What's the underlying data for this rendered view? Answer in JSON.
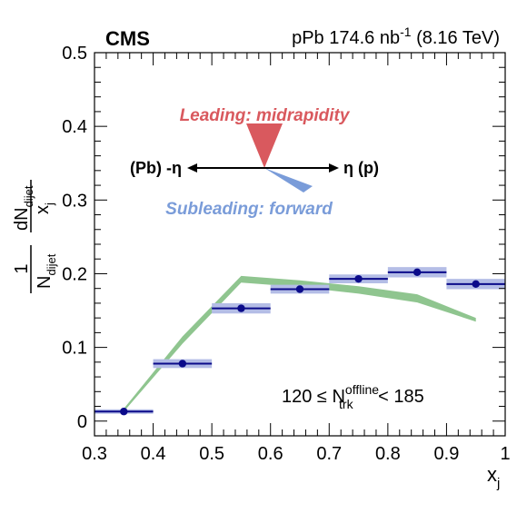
{
  "header": {
    "experiment": "CMS",
    "lumi_prefix": "pPb 174.6 nb",
    "lumi_exp": "-1",
    "lumi_suffix": " (8.16 TeV)"
  },
  "inset": {
    "leading_label": "Leading: midrapidity",
    "subleading_label": "Subleading: forward",
    "left_label": "(Pb) -η",
    "right_label": "η (p)",
    "leading_color": "#d9595e",
    "subleading_color": "#7a9cd9"
  },
  "selection": {
    "prefix": "120 ≤ N",
    "sup": "offline",
    "sub": "trk",
    "suffix": " < 185"
  },
  "chart_data": {
    "type": "scatter",
    "xlabel_main": "x",
    "xlabel_sub": "j",
    "ylabel": {
      "frac_num": "1",
      "frac_den_main": "N",
      "frac_den_sub": "dijet",
      "deriv_num_main": "dN",
      "deriv_num_sub": "dijet",
      "deriv_den_main": "x",
      "deriv_den_sub": "j"
    },
    "xlim": [
      0.3,
      1.0
    ],
    "ylim": [
      -0.02,
      0.5
    ],
    "xticks": [
      "0.3",
      "0.4",
      "0.5",
      "0.6",
      "0.7",
      "0.8",
      "0.9",
      "1"
    ],
    "xtick_values": [
      0.3,
      0.4,
      0.5,
      0.6,
      0.7,
      0.8,
      0.9,
      1.0
    ],
    "yticks": [
      "0",
      "0.1",
      "0.2",
      "0.3",
      "0.4",
      "0.5"
    ],
    "ytick_values": [
      0,
      0.1,
      0.2,
      0.3,
      0.4,
      0.5
    ],
    "data": {
      "x": [
        0.35,
        0.45,
        0.55,
        0.65,
        0.75,
        0.85,
        0.95
      ],
      "x_lo": [
        0.3,
        0.4,
        0.5,
        0.6,
        0.7,
        0.8,
        0.9
      ],
      "x_hi": [
        0.4,
        0.5,
        0.6,
        0.7,
        0.8,
        0.9,
        1.0
      ],
      "y": [
        0.013,
        0.078,
        0.153,
        0.179,
        0.193,
        0.202,
        0.186
      ],
      "syst": [
        0.003,
        0.006,
        0.007,
        0.006,
        0.006,
        0.007,
        0.007
      ],
      "color": "#0b0b8a",
      "syst_color": "#b4bde6"
    },
    "model_band": {
      "x": [
        0.35,
        0.45,
        0.55,
        0.65,
        0.75,
        0.85,
        0.95
      ],
      "lo": [
        0.013,
        0.105,
        0.188,
        0.182,
        0.173,
        0.161,
        0.135
      ],
      "hi": [
        0.017,
        0.115,
        0.197,
        0.191,
        0.183,
        0.172,
        0.14
      ],
      "color": "#8fc58f"
    }
  }
}
